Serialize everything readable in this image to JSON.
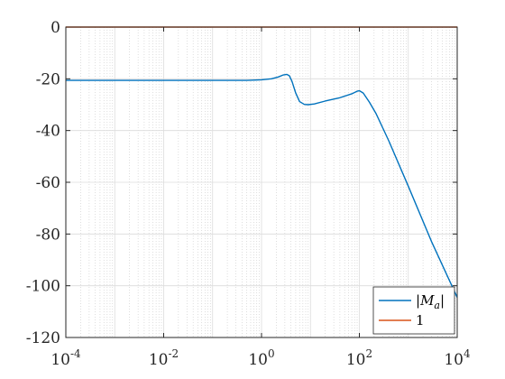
{
  "chart_data": {
    "type": "line",
    "title": "",
    "xlabel": "",
    "ylabel": "",
    "xscale": "log",
    "xlim": [
      0.0001,
      10000
    ],
    "ylim": [
      -120,
      0
    ],
    "grid": "major-and-minor",
    "legend_placement": "bottom-right",
    "x_ticks": [
      {
        "base": "10",
        "exp": "-4",
        "value": 0.0001
      },
      {
        "base": "10",
        "exp": "-2",
        "value": 0.01
      },
      {
        "base": "10",
        "exp": "0",
        "value": 1
      },
      {
        "base": "10",
        "exp": "2",
        "value": 100
      },
      {
        "base": "10",
        "exp": "4",
        "value": 10000
      }
    ],
    "y_ticks": [
      {
        "label": "0",
        "value": 0
      },
      {
        "label": "-20",
        "value": -20
      },
      {
        "label": "-40",
        "value": -40
      },
      {
        "label": "-60",
        "value": -60
      },
      {
        "label": "-80",
        "value": -80
      },
      {
        "label": "-100",
        "value": -100
      },
      {
        "label": "-120",
        "value": -120
      }
    ],
    "series": [
      {
        "name": "|M_a|",
        "color": "#0072BD",
        "x": [
          0.0001,
          0.001,
          0.01,
          0.1,
          0.5,
          1,
          1.6,
          2.2,
          2.8,
          3.3,
          3.7,
          4.2,
          5,
          6,
          7.5,
          9,
          12,
          20,
          40,
          70,
          90,
          100,
          120,
          160,
          220,
          400,
          1000,
          3000,
          10000
        ],
        "y": [
          -20.6,
          -20.6,
          -20.6,
          -20.6,
          -20.6,
          -20.4,
          -20.0,
          -19.3,
          -18.5,
          -18.3,
          -18.8,
          -21.0,
          -25.5,
          -28.8,
          -29.9,
          -30.0,
          -29.7,
          -28.6,
          -27.3,
          -25.8,
          -24.8,
          -24.6,
          -25.5,
          -29.0,
          -33.5,
          -44.0,
          -61.5,
          -83.0,
          -104.5
        ]
      },
      {
        "name": "1",
        "color": "#D95319",
        "x": [
          0.0001,
          10000
        ],
        "y": [
          0,
          0
        ]
      }
    ]
  }
}
